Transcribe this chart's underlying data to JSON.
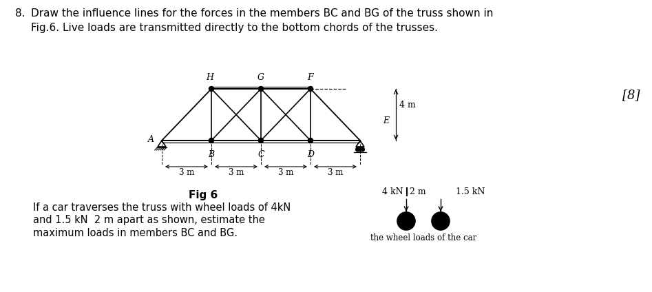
{
  "title_number": "8.",
  "title_text": "Draw the influence lines for the forces in the members BC and BG of the truss shown in\nFig.6. Live loads are transmitted directly to the bottom chords of the trusses.",
  "marks": "[8]",
  "fig_label": "Fig 6",
  "fig_caption_line1": "If a car traverses the truss with wheel loads of 4kN",
  "fig_caption_line2": "and 1.5 kN  2 m apart as shown, estimate the",
  "fig_caption_line3": "maximum loads in members BC and BG.",
  "wheel_caption": "the wheel loads of the car",
  "span_labels": [
    "3 m",
    "3 m",
    "3 m",
    "3 m"
  ],
  "height_label": "4 m",
  "background_color": "#ffffff",
  "line_color": "#000000",
  "font_size_title": 11,
  "font_size_labels": 9
}
